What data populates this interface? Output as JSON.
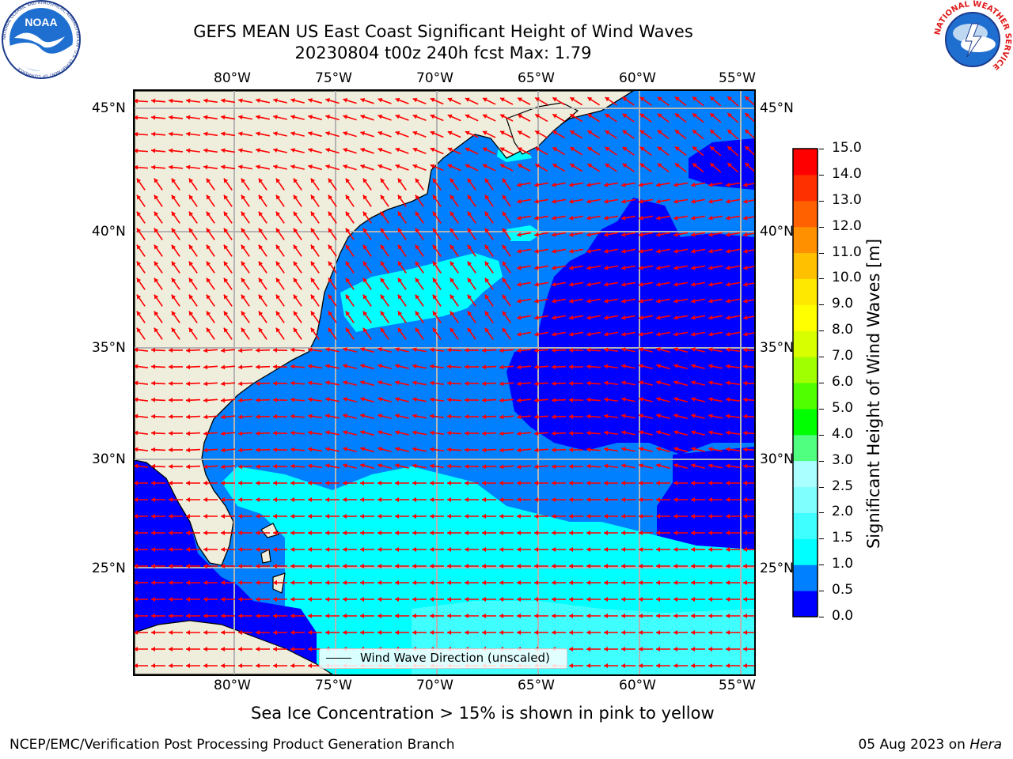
{
  "header": {
    "title_line1": "GEFS MEAN US East Coast Significant Height of Wind Waves",
    "title_line2": "20230804 t00z 240h fcst   Max: 1.79"
  },
  "logos": {
    "left_name": "NOAA",
    "left_ring_text": "NATIONAL OCEANIC AND ATMOSPHERIC ADMINISTRATION · U.S. DEPARTMENT OF COMMERCE",
    "right_ring_text": "NATIONAL WEATHER SERVICE"
  },
  "map": {
    "lon_labels": [
      "80°W",
      "75°W",
      "70°W",
      "65°W",
      "60°W",
      "55°W"
    ],
    "lat_labels": [
      "45°N",
      "40°N",
      "35°N",
      "30°N",
      "25°N"
    ],
    "legend_label": "Wind Wave Direction (unscaled)",
    "land_color": "#efeedc",
    "arrow_color": "#ff0000"
  },
  "colorbar": {
    "label": "Significant Height of Wind Waves [m]",
    "ticks": [
      "0.0",
      "0.5",
      "1.0",
      "1.5",
      "2.0",
      "2.5",
      "3.0",
      "4.0",
      "5.0",
      "6.0",
      "7.0",
      "8.0",
      "9.0",
      "10.0",
      "11.0",
      "12.0",
      "13.0",
      "14.0",
      "15.0"
    ],
    "colors": [
      "#0000ff",
      "#0080ff",
      "#00ffff",
      "#40ffff",
      "#80ffff",
      "#aaffff",
      "#50ff80",
      "#00ff00",
      "#50ff00",
      "#a0ff00",
      "#d8ff00",
      "#ffff00",
      "#ffe800",
      "#ffc000",
      "#ff9000",
      "#ff6000",
      "#ff3000",
      "#ff0000"
    ]
  },
  "notes": {
    "sea_ice": "Sea Ice Concentration > 15% is shown in pink to yellow"
  },
  "footer": {
    "left": "NCEP/EMC/Verification Post Processing Product Generation Branch",
    "right_prefix": "05 Aug 2023 on ",
    "right_host": "Hera"
  }
}
